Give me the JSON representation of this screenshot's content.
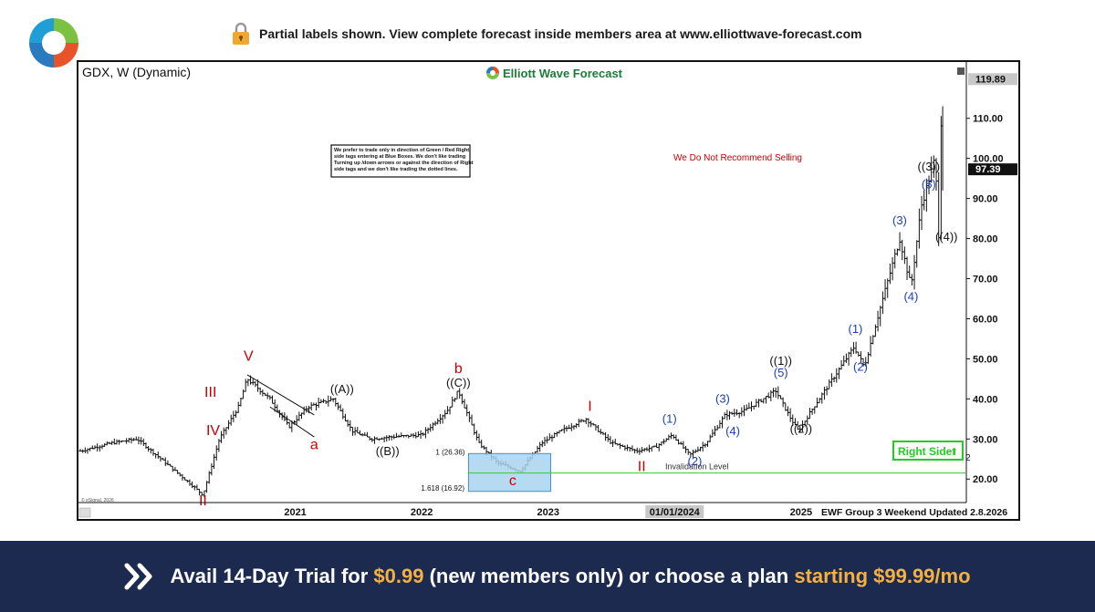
{
  "banner": {
    "notice": "Partial labels shown. View complete forecast inside members area at www.elliottwave-forecast.com"
  },
  "chart_header": {
    "symbol_title": "GDX, W (Dynamic)",
    "brand": "Elliott Wave Forecast",
    "rule_box": [
      "We prefer to trade only in direction of Green / Red Right",
      "side tags entering at Blue Boxes. We don't like trading",
      "Turning up /down arrows or against the direction of Right",
      "side tags and we don't like trading the dotted lines."
    ],
    "warning": "We Do Not Recommend Selling",
    "right_side_tag": "Right Side",
    "right_side_arrow": "⬆",
    "invalidation": "Invalidation Level",
    "footer_note": "EWF Group 3 Weekend Updated 2.8.2026",
    "copyright": "© eSignal, 2026",
    "blue_box_high": "1 (26.36)",
    "blue_box_low": "1.618 (16.92)",
    "edge_digit": "2"
  },
  "footer": {
    "part1": "Avail 14-Day Trial for ",
    "price1": "$0.99",
    "part2": " (new members only) or choose a plan ",
    "part3": "starting $99.99/mo"
  },
  "colors": {
    "navy": "#1b2a4e",
    "accent": "#f5b041",
    "wave_red": "#cc0000",
    "wave_blue": "#1a3fbf",
    "right_side_green": "#22cc22",
    "blue_box": "#a8d4f0"
  },
  "chart_data": {
    "type": "ohlc",
    "symbol": "GDX",
    "interval": "W",
    "ylim": [
      13,
      122
    ],
    "y_ticks": [
      {
        "value": 20,
        "label": "20.00"
      },
      {
        "value": 30,
        "label": "30.00"
      },
      {
        "value": 40,
        "label": "40.00"
      },
      {
        "value": 50,
        "label": "50.00"
      },
      {
        "value": 60,
        "label": "60.00"
      },
      {
        "value": 70,
        "label": "70.00"
      },
      {
        "value": 80,
        "label": "80.00"
      },
      {
        "value": 90,
        "label": "90.00"
      },
      {
        "value": 100,
        "label": "100.00"
      },
      {
        "value": 110,
        "label": "110.00"
      }
    ],
    "price_tags": [
      {
        "value": 119.89,
        "label": "119.89",
        "style": "gray"
      },
      {
        "value": 97.39,
        "label": "97.39",
        "style": "black"
      }
    ],
    "x_ticks": [
      {
        "t": 2021.0,
        "label": "2021"
      },
      {
        "t": 2022.0,
        "label": "2022"
      },
      {
        "t": 2023.0,
        "label": "2023"
      },
      {
        "t": 2024.0,
        "label": "01/01/2024",
        "highlight": true
      },
      {
        "t": 2025.0,
        "label": "2025"
      }
    ],
    "x_range": [
      2019.3,
      2026.3
    ],
    "path": [
      [
        2019.3,
        27.0
      ],
      [
        2019.55,
        29.0
      ],
      [
        2019.75,
        30.0
      ],
      [
        2020.2,
        18.0
      ],
      [
        2020.27,
        16.0
      ],
      [
        2020.4,
        30.0
      ],
      [
        2020.55,
        38.0
      ],
      [
        2020.62,
        45.0
      ],
      [
        2020.8,
        40.0
      ],
      [
        2020.95,
        33.0
      ],
      [
        2021.1,
        38.0
      ],
      [
        2021.3,
        40.0
      ],
      [
        2021.45,
        32.0
      ],
      [
        2021.6,
        30.0
      ],
      [
        2021.75,
        30.5
      ],
      [
        2022.0,
        31.0
      ],
      [
        2022.2,
        37.0
      ],
      [
        2022.29,
        42.0
      ],
      [
        2022.45,
        29.0
      ],
      [
        2022.6,
        24.0
      ],
      [
        2022.78,
        22.0
      ],
      [
        2022.95,
        29.0
      ],
      [
        2023.1,
        32.0
      ],
      [
        2023.3,
        35.0
      ],
      [
        2023.5,
        29.0
      ],
      [
        2023.7,
        27.0
      ],
      [
        2023.85,
        28.0
      ],
      [
        2023.98,
        31.0
      ],
      [
        2024.12,
        26.0
      ],
      [
        2024.25,
        29.0
      ],
      [
        2024.4,
        36.0
      ],
      [
        2024.55,
        37.0
      ],
      [
        2024.8,
        42.0
      ],
      [
        2024.92,
        35.0
      ],
      [
        2024.98,
        32.0
      ],
      [
        2025.1,
        38.0
      ],
      [
        2025.25,
        45.0
      ],
      [
        2025.42,
        53.0
      ],
      [
        2025.5,
        48.0
      ],
      [
        2025.62,
        62.0
      ],
      [
        2025.78,
        80.0
      ],
      [
        2025.87,
        68.0
      ],
      [
        2025.95,
        88.0
      ],
      [
        2026.06,
        100.0
      ],
      [
        2026.09,
        80.0
      ],
      [
        2026.11,
        113.0
      ],
      [
        2026.12,
        97.39
      ]
    ],
    "wedge": {
      "upper": [
        [
          2020.62,
          46.0
        ],
        [
          2021.15,
          36.0
        ]
      ],
      "lower": [
        [
          2020.8,
          38.0
        ],
        [
          2021.15,
          30.5
        ]
      ]
    },
    "blue_box": {
      "x0": 2022.37,
      "x1": 2023.02,
      "y0": 16.92,
      "y1": 26.36
    },
    "invalidation_level": 21.5,
    "wave_labels": [
      {
        "text": "II",
        "t": 2020.27,
        "v": 13.5,
        "color": "red",
        "size": 16
      },
      {
        "text": "III",
        "t": 2020.33,
        "v": 40.5,
        "color": "red",
        "size": 16
      },
      {
        "text": "IV",
        "t": 2020.35,
        "v": 31.0,
        "color": "red",
        "size": 16
      },
      {
        "text": "V",
        "t": 2020.63,
        "v": 49.5,
        "color": "red",
        "size": 16
      },
      {
        "text": "a",
        "t": 2021.15,
        "v": 27.5,
        "color": "red",
        "size": 16
      },
      {
        "text": "((A))",
        "t": 2021.37,
        "v": 41.5,
        "color": "black",
        "size": 13
      },
      {
        "text": "((B))",
        "t": 2021.73,
        "v": 26.0,
        "color": "black",
        "size": 13
      },
      {
        "text": "b",
        "t": 2022.29,
        "v": 46.5,
        "color": "red",
        "size": 16
      },
      {
        "text": "((C))",
        "t": 2022.29,
        "v": 43.0,
        "color": "black",
        "size": 13
      },
      {
        "text": "c",
        "t": 2022.72,
        "v": 18.5,
        "color": "red",
        "size": 16
      },
      {
        "text": "I",
        "t": 2023.33,
        "v": 37.0,
        "color": "red",
        "size": 16
      },
      {
        "text": "II",
        "t": 2023.74,
        "v": 22.0,
        "color": "red",
        "size": 16
      },
      {
        "text": "(1)",
        "t": 2023.96,
        "v": 34.0,
        "color": "blue",
        "size": 13
      },
      {
        "text": "(2)",
        "t": 2024.16,
        "v": 23.5,
        "color": "blue",
        "size": 13
      },
      {
        "text": "(3)",
        "t": 2024.38,
        "v": 39.0,
        "color": "blue",
        "size": 13
      },
      {
        "text": "(4)",
        "t": 2024.46,
        "v": 31.0,
        "color": "blue",
        "size": 13
      },
      {
        "text": "((1))",
        "t": 2024.84,
        "v": 48.5,
        "color": "black",
        "size": 13
      },
      {
        "text": "(5)",
        "t": 2024.84,
        "v": 45.5,
        "color": "blue",
        "size": 13
      },
      {
        "text": "((2))",
        "t": 2025.0,
        "v": 31.5,
        "color": "black",
        "size": 13
      },
      {
        "text": "(1)",
        "t": 2025.43,
        "v": 56.5,
        "color": "blue",
        "size": 13
      },
      {
        "text": "(2)",
        "t": 2025.47,
        "v": 47.0,
        "color": "blue",
        "size": 13
      },
      {
        "text": "(3)",
        "t": 2025.78,
        "v": 83.5,
        "color": "blue",
        "size": 13
      },
      {
        "text": "(4)",
        "t": 2025.87,
        "v": 64.5,
        "color": "blue",
        "size": 13
      },
      {
        "text": "((3))",
        "t": 2026.01,
        "v": 97.0,
        "color": "black",
        "size": 13
      },
      {
        "text": "(5)",
        "t": 2026.01,
        "v": 92.5,
        "color": "blue",
        "size": 13
      },
      {
        "text": "((4))",
        "t": 2026.15,
        "v": 79.5,
        "color": "black",
        "size": 13
      }
    ]
  }
}
